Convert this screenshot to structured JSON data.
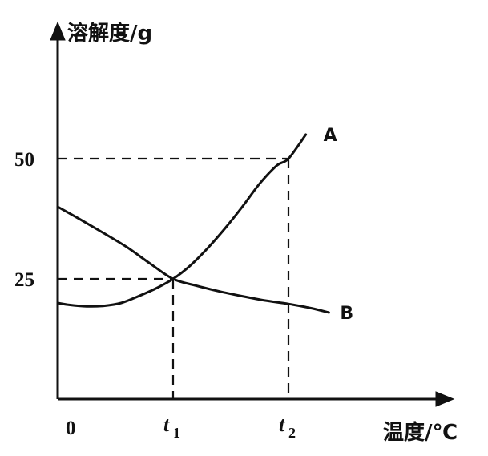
{
  "chart_data": {
    "type": "line",
    "y_axis_title": "溶解度/g",
    "x_axis_title": "温度/℃",
    "origin_label": "0",
    "y_ticks": [
      {
        "label": "25",
        "value": 25
      },
      {
        "label": "50",
        "value": 50
      }
    ],
    "x_ticks": [
      {
        "name": "t1",
        "main": "t",
        "sub": "1",
        "value": 1
      },
      {
        "name": "t2",
        "main": "t",
        "sub": "2",
        "value": 2
      }
    ],
    "xlim": [
      0,
      3.2
    ],
    "ylim": [
      0,
      60
    ],
    "series": [
      {
        "name": "A",
        "x": [
          0,
          0.1,
          0.25,
          0.4,
          0.55,
          0.7,
          0.85,
          1.0,
          1.15,
          1.3,
          1.45,
          1.6,
          1.75,
          1.9,
          2.0,
          2.15
        ],
        "y": [
          20.0,
          19.6,
          19.3,
          19.4,
          20.0,
          21.4,
          23.0,
          25.0,
          27.8,
          31.4,
          35.5,
          40.0,
          44.8,
          48.6,
          50.0,
          55.0
        ]
      },
      {
        "name": "B",
        "x": [
          0,
          0.2,
          0.4,
          0.6,
          0.8,
          1.0,
          1.2,
          1.4,
          1.6,
          1.8,
          2.0,
          2.2,
          2.35
        ],
        "y": [
          40.0,
          37.3,
          34.5,
          31.6,
          28.2,
          25.0,
          23.6,
          22.4,
          21.4,
          20.5,
          19.8,
          18.9,
          18.0
        ]
      }
    ],
    "guides": [
      {
        "name": "guide-25-t1",
        "x": 1,
        "y": 25
      },
      {
        "name": "guide-50-t2",
        "x": 2,
        "y": 50
      }
    ],
    "grid": false
  }
}
